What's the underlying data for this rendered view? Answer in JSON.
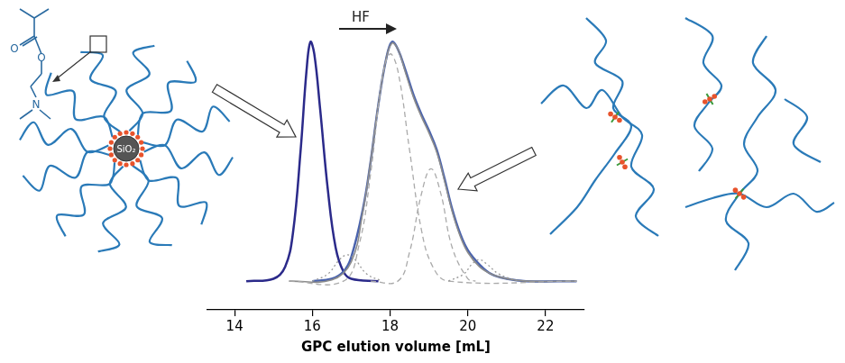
{
  "chart_data": {
    "type": "line",
    "xlabel": "GPC elution volume [mL]",
    "xlim": [
      13.3,
      23.0
    ],
    "xticks": [
      14,
      16,
      18,
      20,
      22
    ],
    "ylim": [
      -0.12,
      1.1
    ],
    "tick_labels": "x",
    "grid": false,
    "annotations": [
      {
        "text": "HF"
      }
    ],
    "series": [
      {
        "color": "#2b2a8a",
        "line_style": "solid",
        "x": [
          14.3,
          15.0,
          15.3,
          15.5,
          15.7,
          15.85,
          15.95,
          16.05,
          16.2,
          16.4,
          16.6,
          16.8,
          17.0,
          17.7
        ],
        "values": [
          0,
          0.01,
          0.06,
          0.2,
          0.55,
          0.88,
          1.0,
          0.95,
          0.72,
          0.38,
          0.14,
          0.04,
          0.01,
          0
        ]
      },
      {
        "color": "#4a63ad",
        "line_style": "solid",
        "x": [
          16.0,
          16.5,
          16.8,
          17.0,
          17.3,
          17.5,
          17.7,
          17.9,
          18.05,
          18.2,
          18.4,
          18.6,
          18.8,
          19.0,
          19.2,
          19.4,
          19.6,
          19.8,
          20.0,
          20.3,
          20.6,
          21.0,
          21.5,
          22.8
        ],
        "values": [
          0,
          0.01,
          0.04,
          0.1,
          0.3,
          0.5,
          0.74,
          0.93,
          1.0,
          0.97,
          0.88,
          0.78,
          0.7,
          0.63,
          0.55,
          0.43,
          0.3,
          0.2,
          0.13,
          0.07,
          0.03,
          0.01,
          0,
          0
        ]
      },
      {
        "color": "#8c8c8c",
        "line_style": "solid",
        "x": [
          15.4,
          16.5,
          17.0,
          17.3,
          17.5,
          17.7,
          17.9,
          18.05,
          18.2,
          18.4,
          18.6,
          18.8,
          19.0,
          19.2,
          19.4,
          19.6,
          19.8,
          20.0,
          20.3,
          20.6,
          21.0,
          21.5,
          22.8
        ],
        "values": [
          0,
          0.005,
          0.08,
          0.29,
          0.5,
          0.74,
          0.93,
          0.995,
          0.97,
          0.87,
          0.77,
          0.69,
          0.62,
          0.54,
          0.42,
          0.29,
          0.19,
          0.12,
          0.06,
          0.03,
          0.01,
          0,
          0
        ]
      },
      {
        "color": "#aaaaaa",
        "line_style": "dashed",
        "x": [
          15.4,
          16.8,
          17.2,
          17.5,
          17.8,
          18.0,
          18.2,
          18.5,
          18.8,
          19.1,
          19.5,
          22.8
        ],
        "values": [
          0,
          0,
          0.15,
          0.45,
          0.85,
          0.95,
          0.88,
          0.55,
          0.22,
          0.06,
          0,
          0
        ]
      },
      {
        "color": "#aaaaaa",
        "line_style": "dashed",
        "x": [
          17.5,
          18.2,
          18.5,
          18.8,
          19.05,
          19.3,
          19.6,
          20.0,
          20.2
        ],
        "values": [
          0,
          0,
          0.12,
          0.36,
          0.47,
          0.37,
          0.14,
          0.01,
          0
        ]
      },
      {
        "color": "#999999",
        "line_style": "dotted",
        "x": [
          16.0,
          16.4,
          16.7,
          16.9,
          17.1,
          17.4,
          17.8
        ],
        "values": [
          0,
          0.03,
          0.09,
          0.11,
          0.09,
          0.03,
          0
        ]
      },
      {
        "color": "#999999",
        "line_style": "dotted",
        "x": [
          19.5,
          19.9,
          20.1,
          20.3,
          20.5,
          20.8,
          21.3
        ],
        "values": [
          0,
          0.03,
          0.07,
          0.09,
          0.07,
          0.03,
          0
        ]
      }
    ]
  },
  "diagrams": {
    "star_polymer": {
      "core_label": "SiO₂",
      "monomer_atoms": [
        "O",
        "O",
        "N"
      ]
    },
    "linear_polymers": {}
  }
}
